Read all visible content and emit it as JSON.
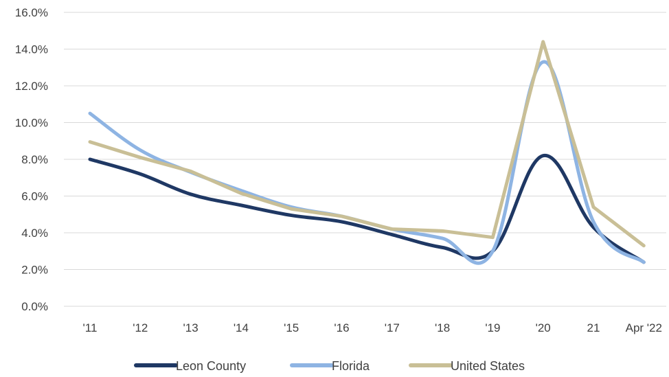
{
  "chart_data": {
    "type": "line",
    "title": "",
    "xlabel": "",
    "ylabel": "",
    "categories": [
      "'11",
      "'12",
      "'13",
      "'14",
      "'15",
      "'16",
      "'17",
      "'18",
      "'19",
      "'20",
      "21",
      "Apr '22"
    ],
    "y_ticks": [
      "0.0%",
      "2.0%",
      "4.0%",
      "6.0%",
      "8.0%",
      "10.0%",
      "12.0%",
      "14.0%",
      "16.0%"
    ],
    "ylim": [
      0,
      16
    ],
    "grid": true,
    "legend_position": "bottom",
    "series": [
      {
        "name": "Leon County",
        "color": "#1f3864",
        "values": [
          8.0,
          7.2,
          6.1,
          5.5,
          4.95,
          4.6,
          3.9,
          3.2,
          3.0,
          8.2,
          4.3,
          2.4
        ]
      },
      {
        "name": "Florida",
        "color": "#8eb4e3",
        "values": [
          10.5,
          8.5,
          7.3,
          6.3,
          5.4,
          4.9,
          4.2,
          3.7,
          3.0,
          13.3,
          4.6,
          2.4
        ]
      },
      {
        "name": "United States",
        "color": "#c9bf96",
        "values": [
          8.95,
          8.1,
          7.35,
          6.15,
          5.3,
          4.9,
          4.2,
          4.1,
          3.75,
          14.4,
          5.4,
          3.3
        ]
      }
    ]
  }
}
